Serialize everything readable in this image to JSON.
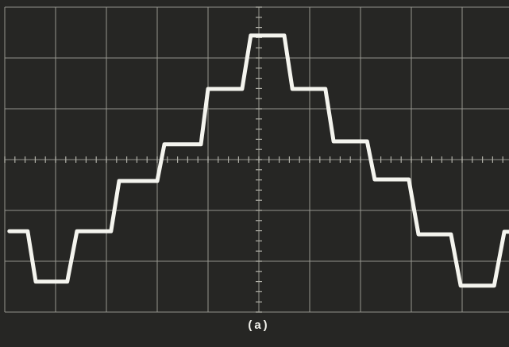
{
  "chart_data": {
    "type": "line",
    "caption": "(a)",
    "x": [
      -4.91,
      -4.55,
      -4.39,
      -3.77,
      -3.58,
      -2.91,
      -2.75,
      -2.0,
      -1.86,
      -1.14,
      -1.0,
      -0.33,
      -0.16,
      0.5,
      0.66,
      1.31,
      1.47,
      2.13,
      2.28,
      2.95,
      3.14,
      3.78,
      3.97,
      4.63,
      4.83,
      4.92
    ],
    "values": [
      -1.41,
      -1.41,
      -2.4,
      -2.4,
      -1.41,
      -1.41,
      -0.42,
      -0.42,
      0.3,
      0.3,
      1.39,
      1.39,
      2.44,
      2.44,
      1.39,
      1.39,
      0.36,
      0.36,
      -0.39,
      -0.39,
      -1.47,
      -1.47,
      -2.48,
      -2.48,
      -1.42,
      -1.42
    ],
    "color": "#f4f4ee",
    "xlim": [
      -5,
      5
    ],
    "ylim": [
      -3,
      3
    ],
    "grid": true
  }
}
